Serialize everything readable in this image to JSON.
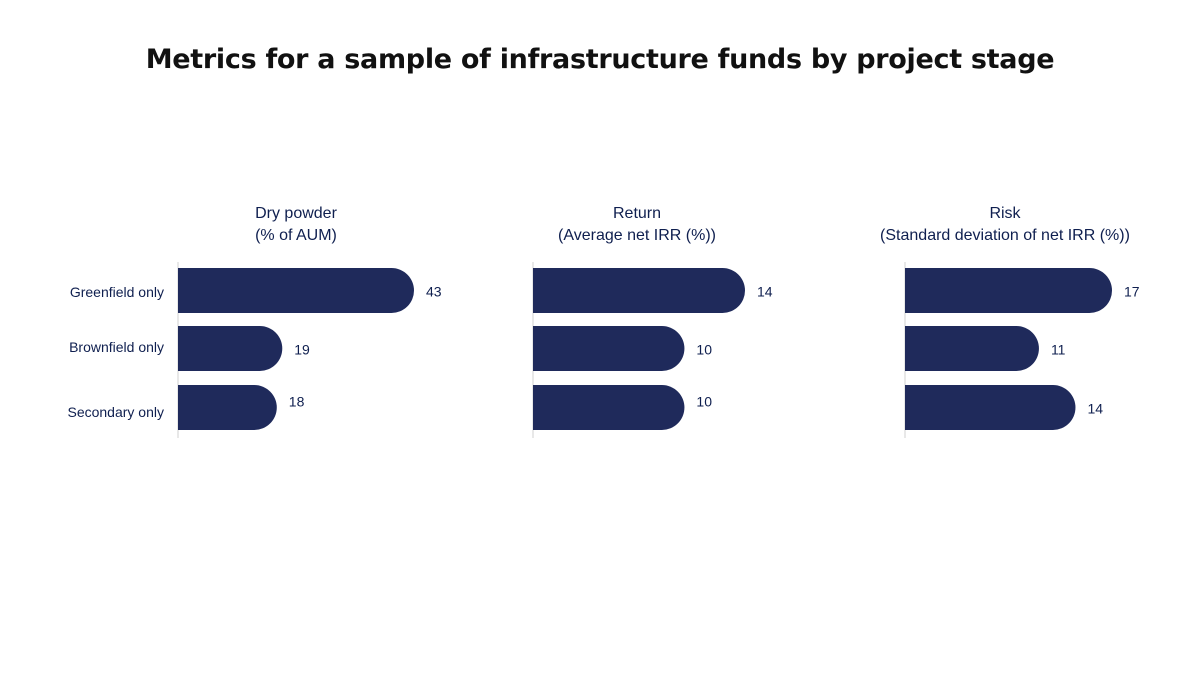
{
  "chart_data": [
    {
      "type": "bar",
      "orientation": "horizontal",
      "title": "Dry powder",
      "subtitle": "(% of AUM)",
      "categories": [
        "Greenfield only",
        "Brownfield only",
        "Secondary only"
      ],
      "values": [
        43,
        19,
        18
      ]
    },
    {
      "type": "bar",
      "orientation": "horizontal",
      "title": "Return",
      "subtitle": "(Average net IRR (%))",
      "categories": [
        "Greenfield only",
        "Brownfield only",
        "Secondary only"
      ],
      "values": [
        14,
        10,
        10
      ]
    },
    {
      "type": "bar",
      "orientation": "horizontal",
      "title": "Risk",
      "subtitle": "(Standard deviation of net IRR (%))",
      "categories": [
        "Greenfield only",
        "Brownfield only",
        "Secondary only"
      ],
      "values": [
        17,
        11,
        14
      ]
    }
  ],
  "title": "Metrics for a sample of infrastructure funds by project stage",
  "colors": {
    "bar": "#1f2a5b",
    "text": "#0f1f4f",
    "axis": "#d0d0d0"
  }
}
